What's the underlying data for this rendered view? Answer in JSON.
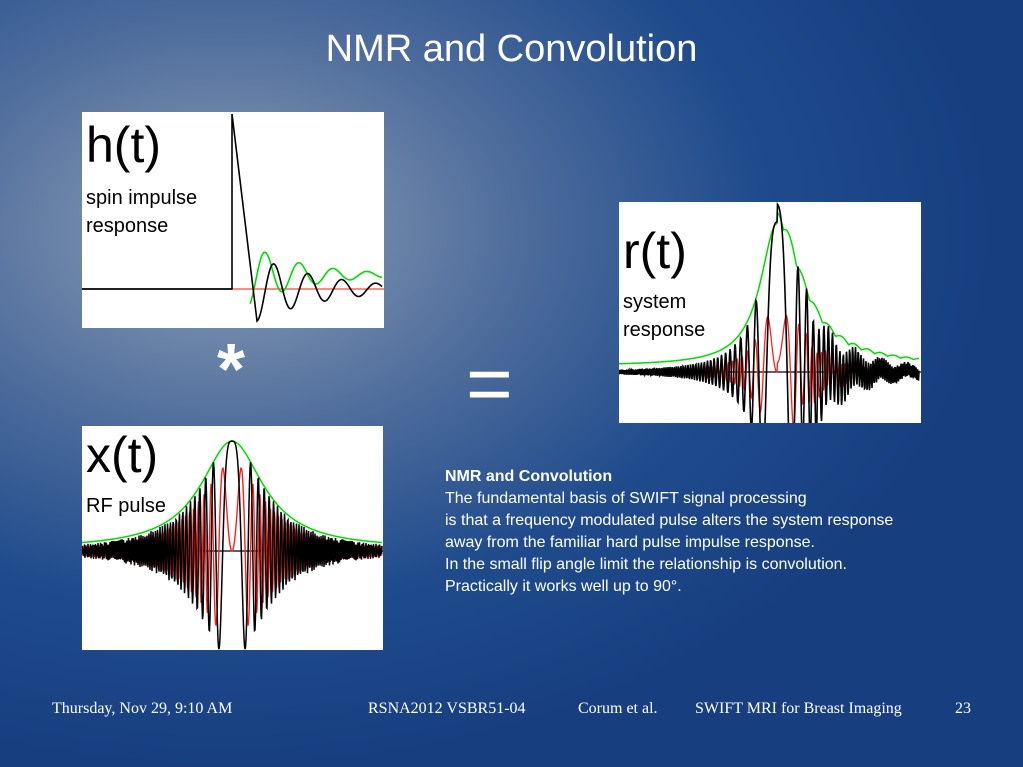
{
  "slide": {
    "title": "NMR and Convolution"
  },
  "panels": {
    "h": {
      "symbol": "h(t)",
      "line1": "spin impulse",
      "line2": "response"
    },
    "r": {
      "symbol": "r(t)",
      "line1": "system",
      "line2": "response"
    },
    "x": {
      "symbol": "x(t)",
      "line1": "RF pulse"
    }
  },
  "operators": {
    "convolve": "*",
    "equals": "="
  },
  "description": {
    "heading": "NMR and Convolution",
    "lines": [
      "The fundamental basis of SWIFT signal processing",
      "is that a frequency modulated pulse alters the system response",
      "away from the familiar hard pulse impulse response.",
      "In the small flip angle limit the relationship is convolution.",
      "Practically it works well up to 90°."
    ]
  },
  "footer": {
    "date": "Thursday, Nov 29, 9:10 AM",
    "session": "RSNA2012 VSBR51-04",
    "authors": "Corum et al.",
    "talk": "SWIFT MRI for Breast Imaging",
    "page": "23"
  },
  "colors": {
    "trace_black": "#000000",
    "trace_green": "#00dd00",
    "trace_red": "#ff2020",
    "baseline_red": "#ff4040"
  }
}
